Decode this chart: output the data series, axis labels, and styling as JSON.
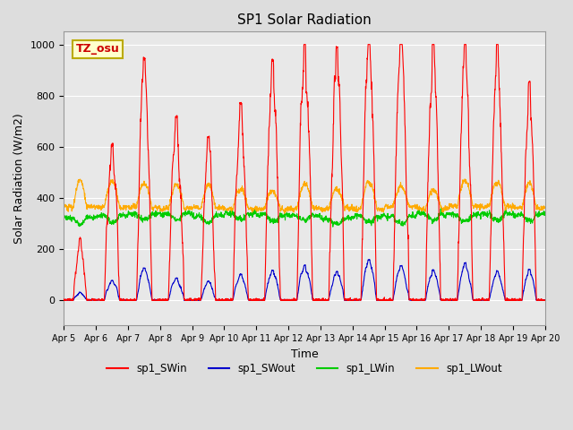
{
  "title": "SP1 Solar Radiation",
  "xlabel": "Time",
  "ylabel": "Solar Radiation (W/m2)",
  "ylim": [
    -100,
    1050
  ],
  "xlim": [
    0,
    15
  ],
  "background_color": "#dddddd",
  "plot_bg_color": "#e8e8e8",
  "colors": {
    "SWin": "#ff0000",
    "SWout": "#0000cc",
    "LWin": "#00cc00",
    "LWout": "#ffaa00"
  },
  "legend_labels": [
    "sp1_SWin",
    "sp1_SWout",
    "sp1_LWin",
    "sp1_LWout"
  ],
  "tz_label": "TZ_osu",
  "x_ticks": [
    0,
    1,
    2,
    3,
    4,
    5,
    6,
    7,
    8,
    9,
    10,
    11,
    12,
    13,
    14,
    15
  ],
  "x_tick_labels": [
    "Apr 5",
    "Apr 6",
    "Apr 7",
    "Apr 8",
    "Apr 9",
    "Apr 10",
    "Apr 11",
    "Apr 12",
    "Apr 13",
    "Apr 14",
    "Apr 15",
    "Apr 16",
    "Apr 17",
    "Apr 18",
    "Apr 19",
    "Apr 20"
  ],
  "grid_color": "#ffffff",
  "linewidth": 0.8,
  "num_points": 2160
}
